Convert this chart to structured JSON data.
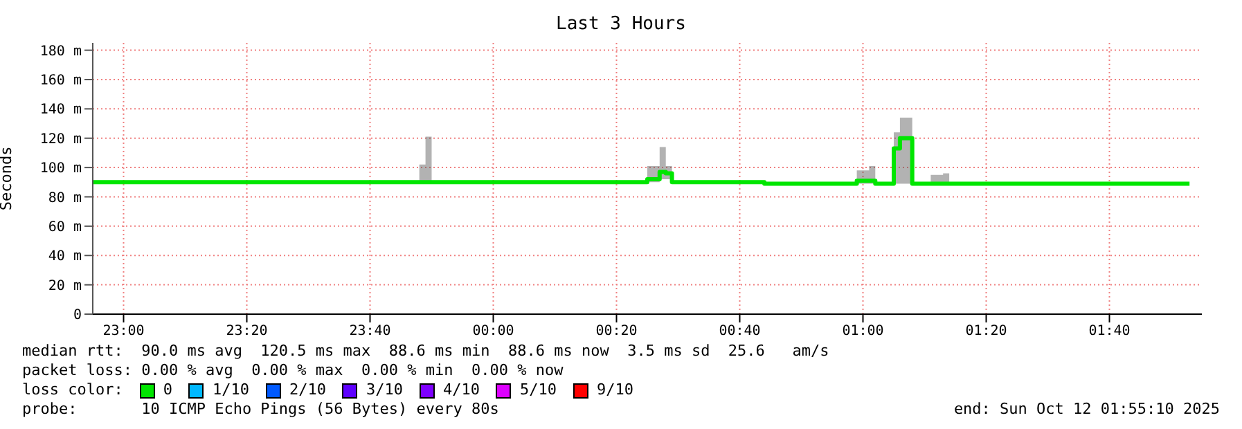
{
  "chart_data": {
    "type": "step",
    "title": "Last 3 Hours",
    "ylabel": "Seconds",
    "legend_title": "loss color:",
    "legend": "bottom",
    "grid": true,
    "x": [
      "2025-10-11T22:55",
      "2025-10-11T23:48",
      "2025-10-11T23:49",
      "2025-10-11T23:50",
      "2025-10-12T00:25",
      "2025-10-12T00:27",
      "2025-10-12T00:28",
      "2025-10-12T00:29",
      "2025-10-12T00:44",
      "2025-10-12T00:59",
      "2025-10-12T01:01",
      "2025-10-12T01:02",
      "2025-10-12T01:05",
      "2025-10-12T01:06",
      "2025-10-12T01:08",
      "2025-10-12T01:11",
      "2025-10-12T01:13",
      "2025-10-12T01:14",
      "2025-10-12T01:17",
      "2025-10-12T01:53"
    ],
    "xlim": [
      "2025-10-11T22:55",
      "2025-10-12T01:55"
    ],
    "xticks": [
      {
        "value": "2025-10-11T23:00",
        "label": "23:00"
      },
      {
        "value": "2025-10-11T23:20",
        "label": "23:20"
      },
      {
        "value": "2025-10-11T23:40",
        "label": "23:40"
      },
      {
        "value": "2025-10-12T00:00",
        "label": "00:00"
      },
      {
        "value": "2025-10-12T00:20",
        "label": "00:20"
      },
      {
        "value": "2025-10-12T00:40",
        "label": "00:40"
      },
      {
        "value": "2025-10-12T01:00",
        "label": "01:00"
      },
      {
        "value": "2025-10-12T01:20",
        "label": "01:20"
      },
      {
        "value": "2025-10-12T01:40",
        "label": "01:40"
      }
    ],
    "ylim": [
      0,
      185
    ],
    "yticks": [
      0,
      {
        "value": 20,
        "label": "20 m"
      },
      {
        "value": 40,
        "label": "40 m"
      },
      {
        "value": 60,
        "label": "60 m"
      },
      {
        "value": 80,
        "label": "80 m"
      },
      {
        "value": 100,
        "label": "100 m"
      },
      {
        "value": 120,
        "label": "120 m"
      },
      {
        "value": 140,
        "label": "140 m"
      },
      {
        "value": 160,
        "label": "160 m"
      },
      {
        "value": 180,
        "label": "180 m"
      }
    ],
    "series": [
      {
        "name": "0",
        "color": "#00e600",
        "values": [
          90,
          90,
          90,
          90,
          92,
          97,
          96,
          90,
          89,
          91,
          91,
          89,
          113,
          120,
          89,
          89,
          89,
          89,
          89,
          89
        ],
        "lower": [
          90,
          90,
          90,
          90,
          90,
          92,
          92,
          90,
          89,
          89,
          89,
          89,
          89,
          89,
          89,
          89,
          89,
          89,
          89,
          89
        ],
        "upper": [
          90,
          102,
          121,
          90,
          101,
          114,
          101,
          90,
          89,
          98,
          101,
          89,
          124,
          134,
          89,
          95,
          96,
          89,
          89,
          89
        ]
      },
      {
        "name": "1/10",
        "color": "#00b8ff",
        "values": [
          null,
          null,
          null,
          null,
          null,
          null,
          null,
          null,
          null,
          null,
          null,
          null,
          null,
          null,
          null,
          null,
          null,
          null,
          null,
          null
        ]
      },
      {
        "name": "2/10",
        "color": "#0059ff",
        "values": [
          null,
          null,
          null,
          null,
          null,
          null,
          null,
          null,
          null,
          null,
          null,
          null,
          null,
          null,
          null,
          null,
          null,
          null,
          null,
          null
        ]
      },
      {
        "name": "3/10",
        "color": "#5e00ff",
        "values": [
          null,
          null,
          null,
          null,
          null,
          null,
          null,
          null,
          null,
          null,
          null,
          null,
          null,
          null,
          null,
          null,
          null,
          null,
          null,
          null
        ]
      },
      {
        "name": "4/10",
        "color": "#7e00ff",
        "values": [
          null,
          null,
          null,
          null,
          null,
          null,
          null,
          null,
          null,
          null,
          null,
          null,
          null,
          null,
          null,
          null,
          null,
          null,
          null,
          null
        ]
      },
      {
        "name": "5/10",
        "color": "#dd00ff",
        "values": [
          null,
          null,
          null,
          null,
          null,
          null,
          null,
          null,
          null,
          null,
          null,
          null,
          null,
          null,
          null,
          null,
          null,
          null,
          null,
          null
        ]
      },
      {
        "name": "9/10",
        "color": "#ff0000",
        "values": [
          null,
          null,
          null,
          null,
          null,
          null,
          null,
          null,
          null,
          null,
          null,
          null,
          null,
          null,
          null,
          null,
          null,
          null,
          null,
          null
        ]
      }
    ],
    "annotations": [
      "median rtt:  90.0 ms avg  120.5 ms max  88.6 ms min  88.6 ms now  3.5 ms sd  25.6   am/s",
      "packet loss: 0.00 % avg  0.00 % max  0.00 % min  0.00 % now",
      "probe:       10 ICMP Echo Pings (56 Bytes) every 80s",
      "end: Sun Oct 12 01:55:10 2025"
    ]
  }
}
